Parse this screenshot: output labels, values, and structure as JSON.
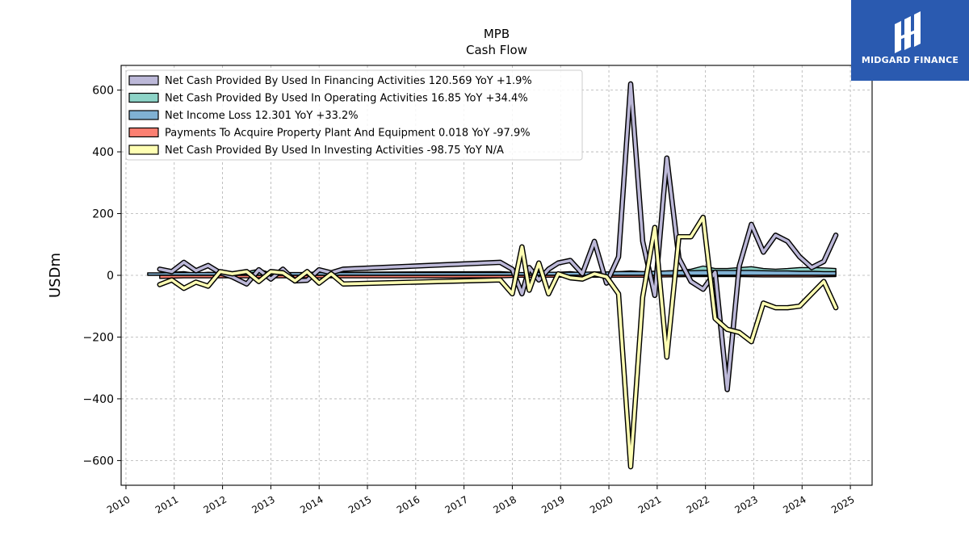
{
  "logo": {
    "text": "MIDGARD FINANCE"
  },
  "chart_data": {
    "type": "line",
    "title": "MPB",
    "subtitle": "Cash Flow",
    "xlabel": "",
    "ylabel": "USDm",
    "xlim": [
      2009.9,
      2025.45
    ],
    "ylim": [
      -680,
      680
    ],
    "yticks": [
      -600,
      -400,
      -200,
      0,
      200,
      400,
      600
    ],
    "yticklabels": [
      "−600",
      "−400",
      "−200",
      "0",
      "200",
      "400",
      "600"
    ],
    "xticks": [
      2010,
      2011,
      2012,
      2013,
      2014,
      2015,
      2016,
      2017,
      2018,
      2019,
      2020,
      2021,
      2022,
      2023,
      2024,
      2025
    ],
    "xticklabels": [
      "2010",
      "2011",
      "2012",
      "2013",
      "2014",
      "2015",
      "2016",
      "2017",
      "2018",
      "2019",
      "2020",
      "2021",
      "2022",
      "2023",
      "2024",
      "2025"
    ],
    "grid": true,
    "legend_position": "top-left",
    "series": [
      {
        "name": "Net Cash Provided By Used In Financing Activities",
        "legend": "Net Cash Provided By Used In Financing Activities  120.569 YoY +1.9%",
        "style": "line",
        "color": "#bcb8d8",
        "x": [
          2010.7,
          2010.95,
          2011.2,
          2011.45,
          2011.7,
          2011.95,
          2012.2,
          2012.5,
          2012.75,
          2013.0,
          2013.25,
          2013.5,
          2013.75,
          2014.0,
          2014.25,
          2014.5,
          2017.75,
          2018.0,
          2018.2,
          2018.35,
          2018.55,
          2018.75,
          2018.95,
          2019.2,
          2019.45,
          2019.7,
          2019.95,
          2020.2,
          2020.45,
          2020.7,
          2020.95,
          2021.2,
          2021.45,
          2021.7,
          2021.95,
          2022.2,
          2022.45,
          2022.7,
          2022.95,
          2023.2,
          2023.45,
          2023.7,
          2023.95,
          2024.2,
          2024.45,
          2024.7
        ],
        "values": [
          20,
          12,
          42,
          15,
          32,
          8,
          -5,
          -28,
          18,
          -12,
          20,
          -18,
          -16,
          18,
          8,
          20,
          42,
          20,
          -60,
          25,
          -15,
          20,
          40,
          48,
          5,
          110,
          -25,
          60,
          620,
          110,
          -65,
          380,
          55,
          -20,
          -45,
          10,
          -370,
          30,
          165,
          75,
          130,
          110,
          60,
          25,
          45,
          130
        ]
      },
      {
        "name": "Net Cash Provided By Used In Operating Activities",
        "legend": "Net Cash Provided By Used In Operating Activities  16.85 YoY +34.4%",
        "style": "area",
        "color": "#8dd3c7",
        "x": [
          2010.7,
          2010.95,
          2011.2,
          2011.45,
          2011.7,
          2011.95,
          2012.2,
          2012.5,
          2012.75,
          2013.0,
          2013.25,
          2013.5,
          2013.75,
          2014.0,
          2014.25,
          2014.5,
          2017.75,
          2018.0,
          2018.2,
          2018.35,
          2018.55,
          2018.75,
          2018.95,
          2019.2,
          2019.45,
          2019.7,
          2019.95,
          2020.2,
          2020.45,
          2020.7,
          2020.95,
          2021.2,
          2021.45,
          2021.7,
          2021.95,
          2022.2,
          2022.45,
          2022.7,
          2022.95,
          2023.2,
          2023.45,
          2023.7,
          2023.95,
          2024.2,
          2024.45,
          2024.7
        ],
        "values": [
          8,
          10,
          12,
          6,
          10,
          8,
          10,
          12,
          20,
          8,
          12,
          6,
          10,
          10,
          8,
          10,
          12,
          10,
          8,
          12,
          10,
          8,
          10,
          12,
          8,
          10,
          10,
          12,
          14,
          12,
          10,
          14,
          16,
          20,
          30,
          22,
          22,
          25,
          28,
          22,
          20,
          22,
          25,
          25,
          24,
          22
        ]
      },
      {
        "name": "Net Income Loss",
        "legend": "Net Income Loss  12.301 YoY +33.2%",
        "style": "area",
        "color": "#80b1d3",
        "x": [
          2010.45,
          2010.7,
          2010.95,
          2011.2,
          2011.45,
          2011.7,
          2011.95,
          2012.2,
          2012.5,
          2012.75,
          2013.0,
          2013.25,
          2013.5,
          2013.75,
          2014.0,
          2014.25,
          2014.5,
          2017.75,
          2018.0,
          2018.2,
          2018.35,
          2018.55,
          2018.75,
          2018.95,
          2019.2,
          2019.45,
          2019.7,
          2019.95,
          2020.2,
          2020.45,
          2020.7,
          2020.95,
          2021.2,
          2021.45,
          2021.7,
          2021.95,
          2022.2,
          2022.45,
          2022.7,
          2022.95,
          2023.2,
          2023.45,
          2023.7,
          2023.95,
          2024.2,
          2024.45,
          2024.7
        ],
        "values": [
          8,
          8,
          9,
          9,
          9,
          9,
          9,
          9,
          9,
          9,
          9,
          9,
          9,
          9,
          9,
          9,
          9,
          9,
          9,
          9,
          9,
          9,
          10,
          10,
          10,
          10,
          11,
          11,
          12,
          12,
          12,
          13,
          14,
          15,
          15,
          16,
          16,
          16,
          16,
          16,
          15,
          14,
          14,
          13,
          13,
          12,
          12
        ]
      },
      {
        "name": "Payments To Acquire Property Plant And Equipment",
        "legend": "Payments To Acquire Property Plant And Equipment  0.018 YoY -97.9%",
        "style": "area",
        "color": "#fb8072",
        "x": [
          2010.7,
          2011.2,
          2011.7,
          2012.2,
          2012.75,
          2013.25,
          2013.75,
          2014.25,
          2014.5,
          2017.75,
          2018.2,
          2018.75,
          2019.2,
          2019.7,
          2020.2,
          2020.7,
          2021.2,
          2021.7,
          2022.2,
          2022.7,
          2023.2,
          2023.7,
          2024.2,
          2024.7
        ],
        "values": [
          -10,
          -8,
          -8,
          -8,
          -8,
          -8,
          -8,
          -8,
          -8,
          -8,
          -6,
          -6,
          -6,
          -6,
          -6,
          -6,
          -5,
          -4,
          -4,
          -4,
          -5,
          -5,
          -5,
          -4
        ]
      },
      {
        "name": "Net Cash Provided By Used In Investing Activities",
        "legend": "Net Cash Provided By Used In Investing Activities  -98.75 YoY N/A",
        "style": "line",
        "color": "#ffffb3",
        "x": [
          2010.7,
          2010.95,
          2011.2,
          2011.45,
          2011.7,
          2011.95,
          2012.2,
          2012.5,
          2012.75,
          2013.0,
          2013.25,
          2013.5,
          2013.75,
          2014.0,
          2014.25,
          2014.5,
          2017.75,
          2018.0,
          2018.2,
          2018.35,
          2018.55,
          2018.75,
          2018.95,
          2019.2,
          2019.45,
          2019.7,
          2019.95,
          2020.2,
          2020.45,
          2020.7,
          2020.95,
          2021.2,
          2021.45,
          2021.7,
          2021.95,
          2022.2,
          2022.45,
          2022.7,
          2022.95,
          2023.2,
          2023.45,
          2023.7,
          2023.95,
          2024.2,
          2024.45,
          2024.7
        ],
        "values": [
          -30,
          -15,
          -42,
          -22,
          -35,
          12,
          5,
          12,
          -20,
          12,
          8,
          -18,
          12,
          -25,
          5,
          -28,
          -15,
          -60,
          92,
          -48,
          40,
          -60,
          5,
          -8,
          -12,
          5,
          -5,
          -60,
          -620,
          -70,
          155,
          -265,
          125,
          125,
          188,
          -140,
          -175,
          -185,
          -215,
          -90,
          -105,
          -105,
          -100,
          -60,
          -20,
          -105
        ]
      }
    ]
  }
}
